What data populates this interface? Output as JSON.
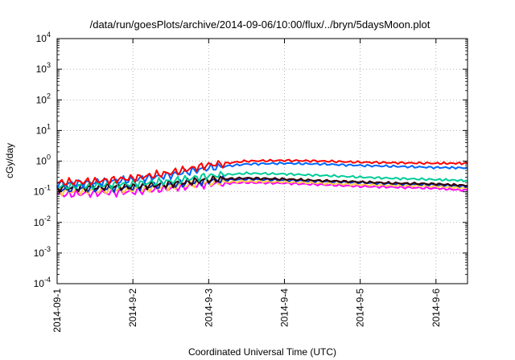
{
  "chart_data": {
    "type": "line",
    "title": "/data/run/goesPlots/archive/2014-09-06/10:00/flux/../bryn/5daysMoon.plot",
    "xlabel": "Coordinated Universal Time (UTC)",
    "ylabel": "cGy/day",
    "y_scale": "log",
    "ylim": [
      0.0001,
      10000
    ],
    "y_ticks": [
      {
        "value": 0.0001,
        "base": "10",
        "exp": "-4"
      },
      {
        "value": 0.001,
        "base": "10",
        "exp": "-3"
      },
      {
        "value": 0.01,
        "base": "10",
        "exp": "-2"
      },
      {
        "value": 0.1,
        "base": "10",
        "exp": "-1"
      },
      {
        "value": 1,
        "base": "10",
        "exp": "0"
      },
      {
        "value": 10,
        "base": "10",
        "exp": "1"
      },
      {
        "value": 100,
        "base": "10",
        "exp": "2"
      },
      {
        "value": 1000,
        "base": "10",
        "exp": "3"
      },
      {
        "value": 10000,
        "base": "10",
        "exp": "4"
      }
    ],
    "xlim": [
      "2014-09-01 00:00",
      "2014-09-06 10:00"
    ],
    "x_ticks": [
      {
        "value": "2014-09-01",
        "label": "2014-09-1"
      },
      {
        "value": "2014-09-02",
        "label": "2014-9-2"
      },
      {
        "value": "2014-09-03",
        "label": "2014-9-3"
      },
      {
        "value": "2014-09-04",
        "label": "2014-9-4"
      },
      {
        "value": "2014-09-05",
        "label": "2014-9-5"
      },
      {
        "value": "2014-09-06",
        "label": "2014-9-6"
      }
    ],
    "grid": true,
    "legend": "none",
    "series": [
      {
        "color": "#ff00ff",
        "x": [
          "2014-09-01 00:00",
          "2014-09-01 12:00",
          "2014-09-02 00:00",
          "2014-09-02 12:00",
          "2014-09-03 00:00",
          "2014-09-03 12:00",
          "2014-09-04 00:00",
          "2014-09-04 12:00",
          "2014-09-05 00:00",
          "2014-09-05 12:00",
          "2014-09-06 00:00",
          "2014-09-06 10:00"
        ],
        "values": [
          0.08,
          0.09,
          0.1,
          0.13,
          0.18,
          0.2,
          0.19,
          0.17,
          0.15,
          0.14,
          0.13,
          0.11
        ]
      },
      {
        "color": "#ffcc44",
        "x": [
          "2014-09-01 00:00",
          "2014-09-01 12:00",
          "2014-09-02 00:00",
          "2014-09-02 12:00",
          "2014-09-03 00:00",
          "2014-09-03 12:00",
          "2014-09-04 00:00",
          "2014-09-04 12:00",
          "2014-09-05 00:00",
          "2014-09-05 12:00",
          "2014-09-06 00:00",
          "2014-09-06 10:00"
        ],
        "values": [
          0.1,
          0.11,
          0.12,
          0.15,
          0.2,
          0.22,
          0.21,
          0.19,
          0.17,
          0.16,
          0.15,
          0.13
        ]
      },
      {
        "color": "#0033cc",
        "x": [
          "2014-09-01 00:00",
          "2014-09-01 12:00",
          "2014-09-02 00:00",
          "2014-09-02 12:00",
          "2014-09-03 00:00",
          "2014-09-03 12:00",
          "2014-09-04 00:00",
          "2014-09-04 12:00",
          "2014-09-05 00:00",
          "2014-09-05 12:00",
          "2014-09-06 00:00",
          "2014-09-06 10:00"
        ],
        "values": [
          0.12,
          0.13,
          0.14,
          0.17,
          0.23,
          0.26,
          0.24,
          0.22,
          0.2,
          0.18,
          0.17,
          0.15
        ]
      },
      {
        "color": "#330000",
        "x": [
          "2014-09-01 00:00",
          "2014-09-01 12:00",
          "2014-09-02 00:00",
          "2014-09-02 12:00",
          "2014-09-03 00:00",
          "2014-09-03 12:00",
          "2014-09-04 00:00",
          "2014-09-04 12:00",
          "2014-09-05 00:00",
          "2014-09-05 12:00",
          "2014-09-06 00:00",
          "2014-09-06 10:00"
        ],
        "values": [
          0.13,
          0.14,
          0.15,
          0.18,
          0.25,
          0.28,
          0.26,
          0.23,
          0.21,
          0.19,
          0.18,
          0.16
        ]
      },
      {
        "color": "#00cc99",
        "x": [
          "2014-09-01 00:00",
          "2014-09-01 12:00",
          "2014-09-02 00:00",
          "2014-09-02 12:00",
          "2014-09-03 00:00",
          "2014-09-03 12:00",
          "2014-09-04 00:00",
          "2014-09-04 12:00",
          "2014-09-05 00:00",
          "2014-09-05 12:00",
          "2014-09-06 00:00",
          "2014-09-06 10:00"
        ],
        "values": [
          0.15,
          0.16,
          0.18,
          0.22,
          0.33,
          0.4,
          0.38,
          0.34,
          0.3,
          0.27,
          0.25,
          0.23
        ]
      },
      {
        "color": "#0066ff",
        "x": [
          "2014-09-01 00:00",
          "2014-09-01 12:00",
          "2014-09-02 00:00",
          "2014-09-02 12:00",
          "2014-09-03 00:00",
          "2014-09-03 12:00",
          "2014-09-04 00:00",
          "2014-09-04 12:00",
          "2014-09-05 00:00",
          "2014-09-05 12:00",
          "2014-09-06 00:00",
          "2014-09-06 10:00"
        ],
        "values": [
          0.18,
          0.2,
          0.25,
          0.35,
          0.6,
          0.8,
          0.85,
          0.8,
          0.72,
          0.67,
          0.62,
          0.6
        ]
      },
      {
        "color": "#ff0000",
        "x": [
          "2014-09-01 00:00",
          "2014-09-01 12:00",
          "2014-09-02 00:00",
          "2014-09-02 12:00",
          "2014-09-03 00:00",
          "2014-09-03 12:00",
          "2014-09-04 00:00",
          "2014-09-04 12:00",
          "2014-09-05 00:00",
          "2014-09-05 12:00",
          "2014-09-06 00:00",
          "2014-09-06 10:00"
        ],
        "values": [
          0.2,
          0.22,
          0.28,
          0.42,
          0.75,
          1.0,
          1.05,
          1.0,
          0.92,
          0.88,
          0.85,
          0.85
        ]
      }
    ]
  }
}
